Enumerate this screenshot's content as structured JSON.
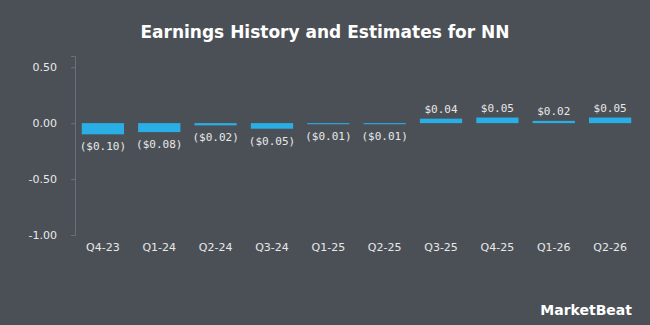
{
  "chart_data": {
    "type": "bar",
    "title": "Earnings History and Estimates for NN",
    "categories": [
      "Q4-23",
      "Q1-24",
      "Q2-24",
      "Q3-24",
      "Q1-25",
      "Q2-25",
      "Q3-25",
      "Q4-25",
      "Q1-26",
      "Q2-26"
    ],
    "values": [
      -0.1,
      -0.08,
      -0.02,
      -0.05,
      -0.01,
      -0.01,
      0.04,
      0.05,
      0.02,
      0.05
    ],
    "value_labels": [
      "($0.10)",
      "($0.08)",
      "($0.02)",
      "($0.05)",
      "($0.01)",
      "($0.01)",
      "$0.04",
      "$0.05",
      "$0.02",
      "$0.05"
    ],
    "data_labels": true,
    "color": "#2aaee6",
    "ylim": [
      -1.0,
      0.6
    ],
    "yticks": [
      {
        "value": -1.0,
        "label": "-1.00"
      },
      {
        "value": -0.5,
        "label": "-0.50"
      },
      {
        "value": 0,
        "label": "0.00"
      },
      {
        "value": 0.5,
        "label": "0.50"
      }
    ],
    "annotations": [
      "MarketBeat"
    ]
  }
}
